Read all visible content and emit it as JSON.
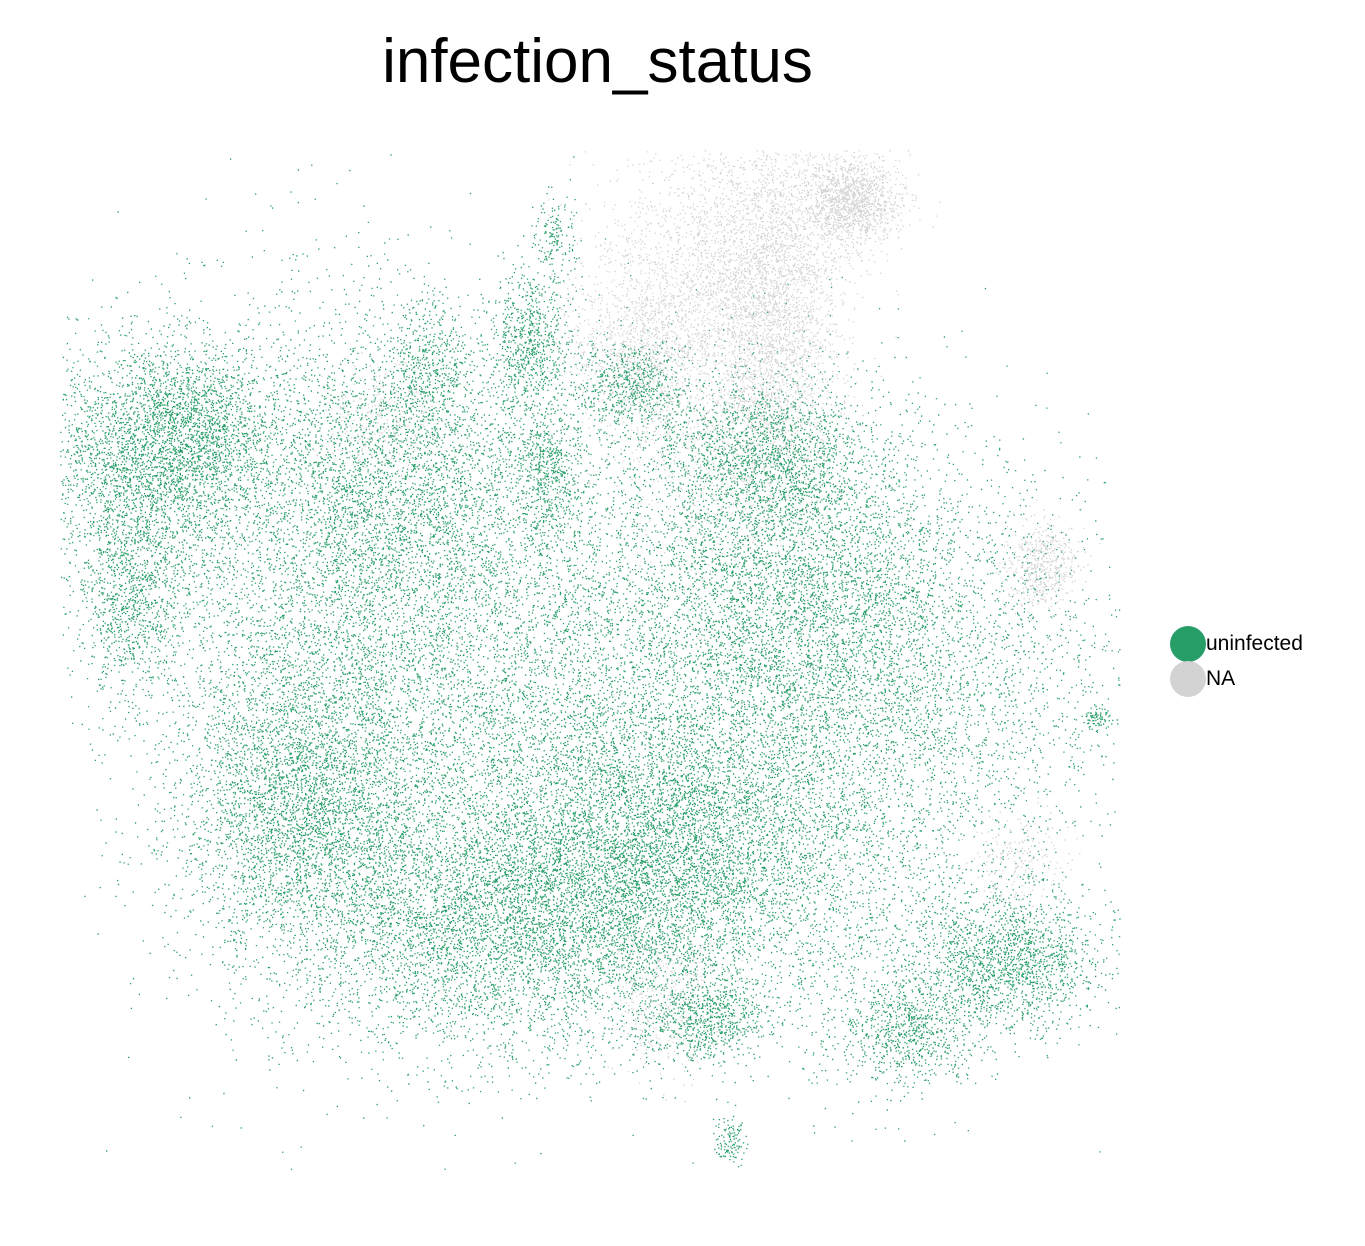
{
  "chart_data": {
    "type": "scatter",
    "title": "infection_status",
    "xlabel": "",
    "ylabel": "",
    "grid": false,
    "legend_position": "right",
    "series": [
      {
        "name": "uninfected",
        "color": "#279e68"
      },
      {
        "name": "NA",
        "color": "#d3d3d3"
      }
    ]
  }
}
